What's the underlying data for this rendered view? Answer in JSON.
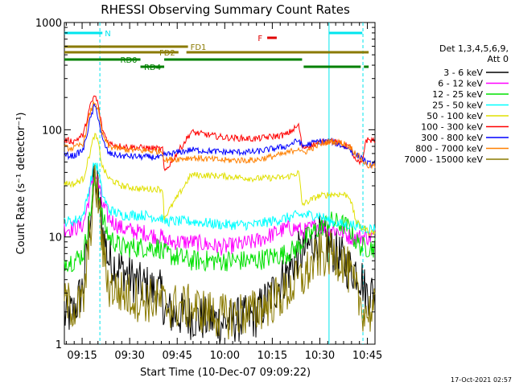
{
  "chart_data": {
    "type": "line",
    "title": "RHESSI Observing Summary Count Rates",
    "xlabel": "Start Time (10-Dec-07 09:09:22)",
    "ylabel": "Count Rate (s⁻¹ detector⁻¹)",
    "y_scale": "log",
    "ylim": [
      1,
      1000
    ],
    "xlim_minutes": [
      0,
      98
    ],
    "x_tick_labels": [
      "09:15",
      "09:30",
      "09:45",
      "10:00",
      "10:15",
      "10:30",
      "10:45"
    ],
    "x_tick_minutes": [
      5.6,
      20.6,
      35.6,
      50.6,
      65.6,
      80.6,
      95.6
    ],
    "y_tick_labels": [
      "1",
      "10",
      "100",
      "1000"
    ],
    "y_tick_values": [
      1,
      10,
      100,
      1000
    ],
    "legend_title": [
      "Det 1,3,4,5,6,9,",
      "Att 0"
    ],
    "footer_date": "17-Oct-2021 02:57",
    "flags": [
      {
        "label": "N",
        "color": "#00e5ee",
        "segments": [
          [
            0,
            12
          ],
          [
            83.5,
            94
          ]
        ]
      },
      {
        "label": "F",
        "color": "#e00000",
        "segments": [
          [
            64,
            67
          ]
        ]
      },
      {
        "label": "FD1",
        "color": "#8a7a00",
        "segments": [
          [
            0,
            39
          ]
        ]
      },
      {
        "label": "FD2",
        "color": "#8a7a00",
        "segments": [
          [
            0,
            36
          ],
          [
            38.5,
            96
          ]
        ]
      },
      {
        "label": "RD0",
        "color": "#008000",
        "segments": [
          [
            0,
            24
          ],
          [
            31.5,
            75
          ]
        ]
      },
      {
        "label": "RD4",
        "color": "#008000",
        "segments": [
          [
            24,
            31.5
          ],
          [
            75.5,
            93.5
          ],
          [
            94.5,
            96
          ]
        ]
      }
    ],
    "vertical_markers": [
      {
        "x": 11.2,
        "color": "#00e5ee",
        "style": "dashed"
      },
      {
        "x": 83.5,
        "color": "#00e5ee",
        "style": "solid"
      },
      {
        "x": 94.2,
        "color": "#00e5ee",
        "style": "dashed"
      }
    ],
    "x": [
      0,
      3,
      6,
      8,
      9.5,
      10.5,
      12,
      14,
      18,
      24,
      25,
      30,
      31,
      31.5,
      40,
      50,
      60,
      70,
      74,
      75,
      80,
      84,
      88,
      90,
      92,
      94,
      95,
      96
    ],
    "series": [
      {
        "name": "3 - 6 keV",
        "color": "#000000",
        "values": [
          1.8,
          2.0,
          3.5,
          15,
          35,
          28,
          12,
          6,
          5,
          3.5,
          3.5,
          3.0,
          3.0,
          2.0,
          1.8,
          1.6,
          1.8,
          4.5,
          7,
          7,
          10,
          8,
          6,
          5,
          5,
          4,
          3,
          3
        ]
      },
      {
        "name": "6 - 12 keV",
        "color": "#ff00ff",
        "values": [
          12,
          12,
          13,
          25,
          40,
          34,
          20,
          15,
          12,
          11,
          11,
          10,
          10,
          9,
          9,
          8,
          9,
          12,
          12,
          11,
          13,
          12,
          11,
          10,
          10,
          10,
          10,
          10
        ]
      },
      {
        "name": "12 - 25 keV",
        "color": "#00e000",
        "values": [
          6,
          6,
          7,
          15,
          33,
          28,
          15,
          10,
          8,
          8,
          8,
          8,
          7,
          7,
          6,
          6,
          6,
          7,
          8,
          9,
          12,
          14,
          13,
          12,
          9,
          8,
          8,
          8
        ]
      },
      {
        "name": "25 - 50 keV",
        "color": "#00ffff",
        "values": [
          14,
          14,
          16,
          30,
          50,
          44,
          25,
          18,
          16,
          16,
          16,
          15,
          15,
          14,
          14,
          13,
          13,
          15,
          16,
          16,
          16,
          14,
          13,
          13,
          13,
          12,
          12,
          12
        ]
      },
      {
        "name": "50 - 100 keV",
        "color": "#e0e000",
        "values": [
          32,
          31,
          35,
          60,
          90,
          80,
          45,
          35,
          30,
          28,
          28,
          28,
          28,
          15,
          38,
          37,
          35,
          36,
          40,
          20,
          24,
          25,
          25,
          24,
          14,
          12,
          12,
          11
        ]
      },
      {
        "name": "100 - 300 keV",
        "color": "#ff0000",
        "values": [
          80,
          78,
          90,
          160,
          210,
          180,
          100,
          75,
          70,
          68,
          68,
          66,
          66,
          40,
          95,
          85,
          82,
          90,
          110,
          68,
          75,
          80,
          72,
          70,
          50,
          48,
          80,
          80
        ]
      },
      {
        "name": "300 - 800 keV",
        "color": "#0000ff",
        "values": [
          58,
          57,
          65,
          120,
          170,
          140,
          80,
          60,
          57,
          56,
          56,
          55,
          55,
          58,
          65,
          62,
          62,
          70,
          80,
          70,
          78,
          78,
          70,
          66,
          58,
          55,
          50,
          48
        ]
      },
      {
        "name": "800 - 7000 keV",
        "color": "#ff8000",
        "values": [
          68,
          67,
          75,
          140,
          185,
          160,
          90,
          70,
          66,
          64,
          64,
          63,
          63,
          52,
          55,
          52,
          52,
          60,
          68,
          60,
          72,
          78,
          75,
          70,
          60,
          52,
          48,
          46
        ]
      },
      {
        "name": "7000 - 15000 keV",
        "color": "#8a7a00",
        "values": [
          2.5,
          2.2,
          2.4,
          10,
          30,
          26,
          8,
          3.5,
          3.0,
          2.6,
          2.6,
          2.5,
          2.5,
          2.3,
          2.2,
          1.8,
          2.0,
          3.0,
          4.0,
          4.0,
          6.5,
          7.0,
          6.0,
          4.5,
          3.0,
          2.2,
          2.0,
          2.0
        ]
      }
    ]
  }
}
